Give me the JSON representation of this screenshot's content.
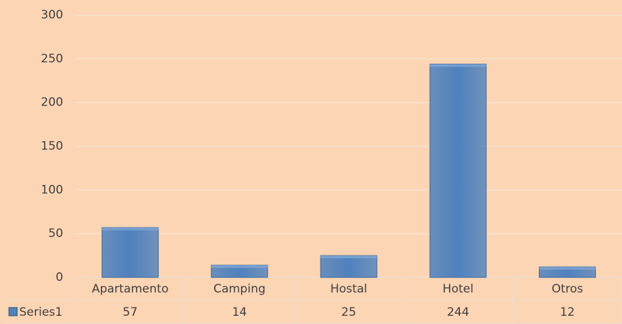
{
  "chart_data": {
    "type": "bar",
    "categories": [
      "Apartamento",
      "Camping",
      "Hostal",
      "Hotel",
      "Otros"
    ],
    "series": [
      {
        "name": "Series1",
        "color": "#4f81bd",
        "values": [
          57,
          14,
          25,
          244,
          12
        ]
      }
    ],
    "ylim": [
      0,
      300
    ],
    "yticks": [
      0,
      50,
      100,
      150,
      200,
      250,
      300
    ],
    "grid": true
  }
}
